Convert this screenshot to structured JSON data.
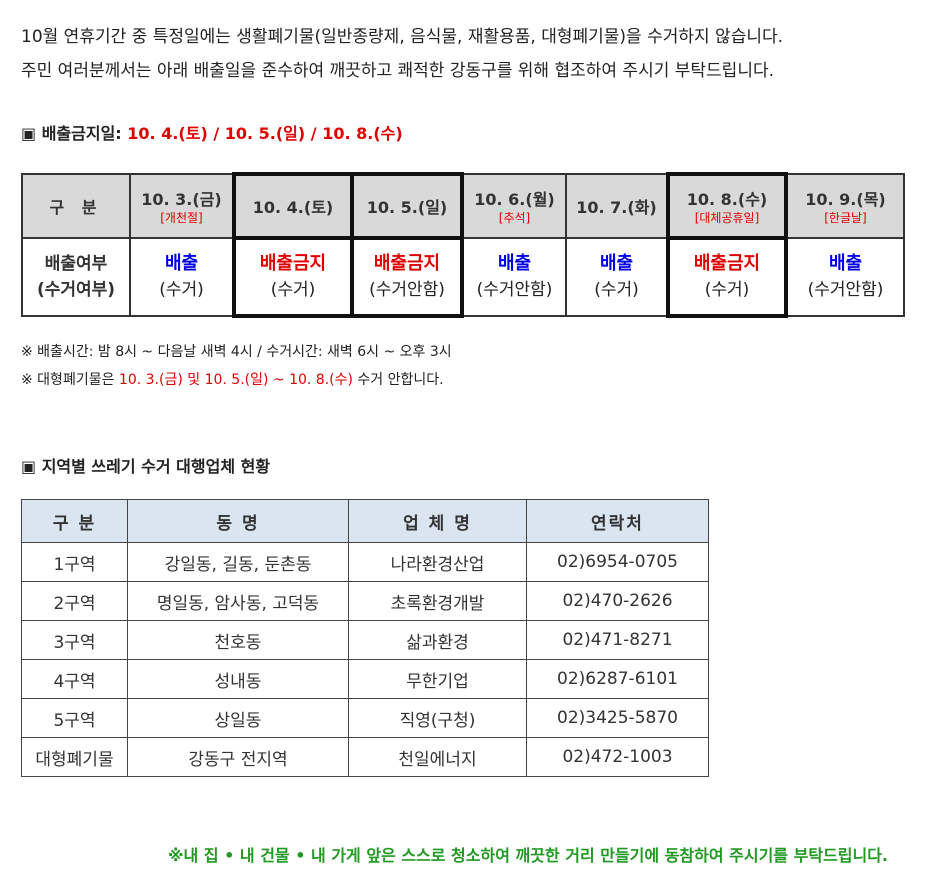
{
  "intro": {
    "line1": "10월 연휴기간 중 특정일에는 생활폐기물(일반종량제, 음식물, 재활용품, 대형폐기물)을 수거하지 않습니다.",
    "line2": "주민 여러분께서는 아래 배출일을 준수하여 깨끗하고 쾌적한 강동구를 위해 협조하여 주시기 부탁드립니다."
  },
  "section1": {
    "bullet": "▣",
    "label": "배출금지일: ",
    "dates": "10. 4.(토) / 10. 5.(일) / 10. 8.(수)"
  },
  "schedule": {
    "header_label": "구 분",
    "row_label": "배출여부(수거여부)",
    "row_label_1": "배출여부",
    "row_label_2": "(수거여부)",
    "days": [
      {
        "date": "10. 3.(금)",
        "note": "[개천절]",
        "status": "배출",
        "collect": "(수거)",
        "color": "#0000e6"
      },
      {
        "date": "10. 4.(토)",
        "note": "",
        "status": "배출금지",
        "collect": "(수거)",
        "color": "#e00000"
      },
      {
        "date": "10. 5.(일)",
        "note": "",
        "status": "배출금지",
        "collect": "(수거안함)",
        "color": "#e00000"
      },
      {
        "date": "10. 6.(월)",
        "note": "[추석]",
        "status": "배출",
        "collect": "(수거안함)",
        "color": "#0000e6"
      },
      {
        "date": "10. 7.(화)",
        "note": "",
        "status": "배출",
        "collect": "(수거)",
        "color": "#0000e6"
      },
      {
        "date": "10. 8.(수)",
        "note": "[대체공휴일]",
        "status": "배출금지",
        "collect": "(수거)",
        "color": "#e00000"
      },
      {
        "date": "10. 9.(목)",
        "note": "[한글날]",
        "status": "배출",
        "collect": "(수거안함)",
        "color": "#0000e6"
      }
    ]
  },
  "notes": {
    "time": "※ 배출시간: 밤 8시 ~ 다음날 새벽 4시  /  수거시간: 새벽 6시 ~ 오후 3시",
    "bulky_prefix": "※ 대형폐기물은 ",
    "bulky_dates": "10. 3.(금) 및 10. 5.(일) ~ 10. 8.(수)",
    "bulky_suffix": " 수거 안합니다."
  },
  "section2": {
    "bullet": "▣",
    "label": "지역별 쓰레기 수거 대행업체 현황"
  },
  "vendors": {
    "headers": [
      "구 분",
      "동 명",
      "업 체 명",
      "연락처"
    ],
    "rows": [
      [
        "1구역",
        "강일동, 길동, 둔촌동",
        "나라환경산업",
        "02)6954-0705"
      ],
      [
        "2구역",
        "명일동, 암사동, 고덕동",
        "초록환경개발",
        "02)470-2626"
      ],
      [
        "3구역",
        "천호동",
        "삶과환경",
        "02)471-8271"
      ],
      [
        "4구역",
        "성내동",
        "무한기업",
        "02)6287-6101"
      ],
      [
        "5구역",
        "상일동",
        "직영(구청)",
        "02)3425-5870"
      ],
      [
        "대형폐기물",
        "강동구 전지역",
        "천일에너지",
        "02)472-1003"
      ]
    ]
  },
  "footer": "※내 집 • 내 건물 • 내 가게 앞은 스스로 청소하여 깨끗한 거리 만들기에 동참하여 주시기를 부탁드립니다."
}
